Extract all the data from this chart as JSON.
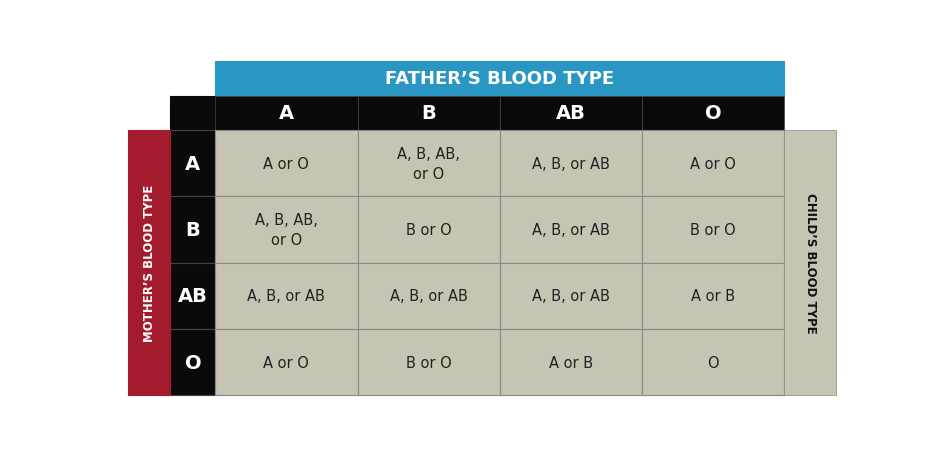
{
  "title_father": "FATHER’S BLOOD TYPE",
  "title_mother": "MOTHER’S BLOOD TYPE",
  "title_child": "CHILD’S BLOOD TYPE",
  "father_types": [
    "A",
    "B",
    "AB",
    "O"
  ],
  "mother_types": [
    "A",
    "B",
    "AB",
    "O"
  ],
  "cell_data": [
    [
      "A or O",
      "A, B, AB,\nor O",
      "A, B, or AB",
      "A or O"
    ],
    [
      "A, B, AB,\nor O",
      "B or O",
      "A, B, or AB",
      "B or O"
    ],
    [
      "A, B, or AB",
      "A, B, or AB",
      "A, B, or AB",
      "A or B"
    ],
    [
      "A or O",
      "B or O",
      "A or B",
      "O"
    ]
  ],
  "color_father_header": "#2A96C4",
  "color_col_header_bg": "#0a0a0a",
  "color_col_header_text": "#ffffff",
  "color_row_header_bg": "#0a0a0a",
  "color_row_header_text": "#ffffff",
  "color_mother_sidebar": "#A31B2C",
  "color_child_sidebar": "#C8C4B4",
  "color_child_text": "#111111",
  "color_cell_bg": "#C8C4B4",
  "color_cell_text": "#222222",
  "color_grid_line": "#888888",
  "background_color": "#ffffff",
  "figure_width": 9.29,
  "figure_height": 4.52
}
